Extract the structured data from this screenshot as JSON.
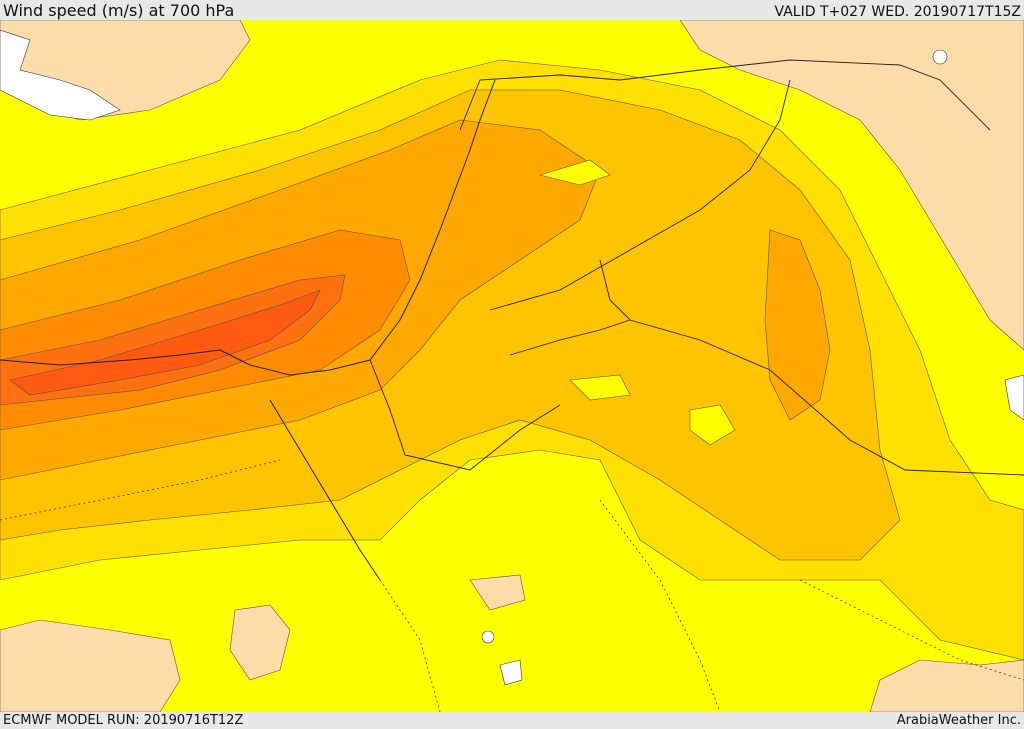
{
  "header": {
    "title": "Wind speed (m/s) at 700 hPa",
    "valid_time": "VALID T+027 WED. 20190717T15Z"
  },
  "footer": {
    "model_run": "ECMWF MODEL RUN: 20190716T12Z",
    "credit": "ArabiaWeather Inc."
  },
  "map": {
    "variable": "wind speed",
    "level_hpa": 700,
    "units": "m/s",
    "colors": {
      "land_pale": "#fcdca8",
      "yellow": "#ffff00",
      "light_orange": "#ffe000",
      "orange1": "#ffc400",
      "orange2": "#ffa800",
      "orange3": "#ff8c00",
      "orange4": "#ff7010",
      "orange5": "#ff5a10",
      "water": "#ffffff"
    }
  }
}
